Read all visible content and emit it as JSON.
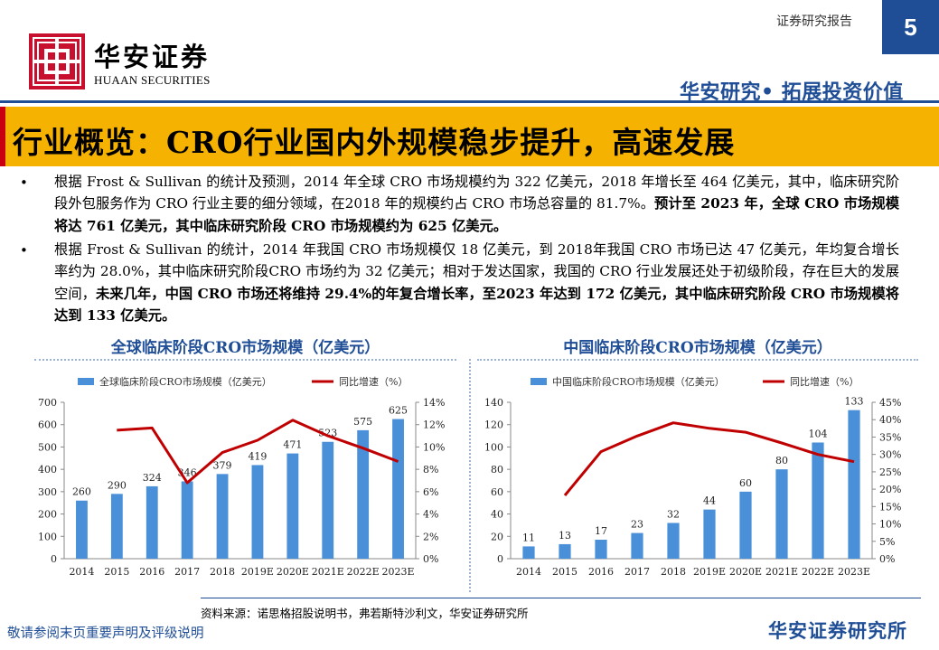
{
  "header": {
    "logo_cn": "华安证券",
    "logo_en": "HUAAN SECURITIES",
    "report_label": "证券研究报告",
    "page_number": "5",
    "slogan": "华安研究• 拓展投资价值"
  },
  "title": "行业概览：CRO行业国内外规模稳步提升，高速发展",
  "bullets": [
    {
      "bullet": "•",
      "normal": "根据 Frost & Sullivan 的统计及预测，2014 年全球 CRO 市场规模约为 322 亿美元，2018 年增长至 464 亿美元，其中，临床研究阶段外包服务作为 CRO 行业主要的细分领域，在2018 年的规模约占 CRO 市场总容量的 81.7%。",
      "bold": "预计至 2023 年，全球 CRO 市场规模将达 761 亿美元，其中临床研究阶段 CRO 市场规模约为 625 亿美元。"
    },
    {
      "bullet": "•",
      "normal": "根据 Frost & Sullivan 的统计，2014 年我国 CRO 市场规模仅 18 亿美元，到 2018年我国 CRO 市场已达 47 亿美元，年均复合增长率约为 28.0%，其中临床研究阶段CRO 市场约为 32 亿美元；相对于发达国家，我国的 CRO 行业发展还处于初级阶段，存在巨大的发展空间，",
      "bold": "未来几年，中国 CRO 市场还将维持 29.4%的年复合增长率，至2023 年达到 172 亿美元，其中临床研究阶段 CRO 市场规模将达到 133 亿美元。"
    }
  ],
  "charts": {
    "global_title": "全球临床阶段CRO市场规模（亿美元）",
    "china_title": "中国临床阶段CRO市场规模（亿美元）"
  },
  "chart_data": [
    {
      "type": "bar",
      "title": "全球临床阶段CRO市场规模（亿美元）",
      "categories": [
        "2014",
        "2015",
        "2016",
        "2017",
        "2018",
        "2019E",
        "2020E",
        "2021E",
        "2022E",
        "2023E"
      ],
      "series": [
        {
          "name": "全球临床阶段CRO市场规模（亿美元）",
          "type": "bar",
          "axis": "left",
          "values": [
            260,
            290,
            324,
            346,
            379,
            419,
            471,
            523,
            575,
            625
          ]
        },
        {
          "name": "同比增速（%）",
          "type": "line",
          "axis": "right",
          "values": [
            null,
            11.5,
            11.7,
            6.8,
            9.5,
            10.6,
            12.4,
            11.0,
            9.9,
            8.7
          ]
        }
      ],
      "ylim_left": [
        0,
        700
      ],
      "yticks_left": [
        "0",
        "100",
        "200",
        "300",
        "400",
        "500",
        "600",
        "700"
      ],
      "ylim_right": [
        0,
        14
      ],
      "yticks_right": [
        "0%",
        "2%",
        "4%",
        "6%",
        "8%",
        "10%",
        "12%",
        "14%"
      ],
      "legend_position": "top",
      "grid": false,
      "bar_color": "#4a90d9",
      "line_color": "#c00000"
    },
    {
      "type": "bar",
      "title": "中国临床阶段CRO市场规模（亿美元）",
      "categories": [
        "2014",
        "2015",
        "2016",
        "2017",
        "2018",
        "2019E",
        "2020E",
        "2021E",
        "2022E",
        "2023E"
      ],
      "series": [
        {
          "name": "中国临床阶段CRO市场规模（亿美元）",
          "type": "bar",
          "axis": "left",
          "values": [
            11,
            13,
            17,
            23,
            32,
            44,
            60,
            80,
            104,
            133
          ]
        },
        {
          "name": "同比增速（%）",
          "type": "line",
          "axis": "right",
          "values": [
            null,
            18.2,
            30.8,
            35.3,
            39.1,
            37.5,
            36.4,
            33.3,
            30.0,
            27.9
          ]
        }
      ],
      "ylim_left": [
        0,
        140
      ],
      "yticks_left": [
        "0",
        "20",
        "40",
        "60",
        "80",
        "100",
        "120",
        "140"
      ],
      "ylim_right": [
        0,
        45
      ],
      "yticks_right": [
        "0%",
        "5%",
        "10%",
        "15%",
        "20%",
        "25%",
        "30%",
        "35%",
        "40%",
        "45%"
      ],
      "legend_position": "top",
      "grid": false,
      "bar_color": "#4a90d9",
      "line_color": "#c00000"
    }
  ],
  "footer": {
    "source": "资料来源：诺思格招股说明书，弗若斯特沙利文，华安证券研究所",
    "disclaimer": "敬请参阅末页重要声明及评级说明",
    "brand": "华安证券研究所"
  }
}
